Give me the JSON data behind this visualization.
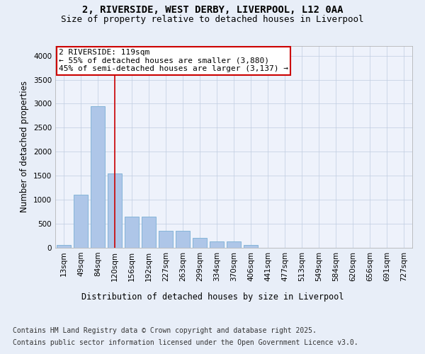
{
  "title1": "2, RIVERSIDE, WEST DERBY, LIVERPOOL, L12 0AA",
  "title2": "Size of property relative to detached houses in Liverpool",
  "xlabel": "Distribution of detached houses by size in Liverpool",
  "ylabel": "Number of detached properties",
  "categories": [
    "13sqm",
    "49sqm",
    "84sqm",
    "120sqm",
    "156sqm",
    "192sqm",
    "227sqm",
    "263sqm",
    "299sqm",
    "334sqm",
    "370sqm",
    "406sqm",
    "441sqm",
    "477sqm",
    "513sqm",
    "549sqm",
    "584sqm",
    "620sqm",
    "656sqm",
    "691sqm",
    "727sqm"
  ],
  "values": [
    55,
    1100,
    2950,
    1550,
    650,
    650,
    350,
    350,
    200,
    130,
    130,
    55,
    5,
    0,
    0,
    0,
    0,
    0,
    0,
    0,
    0
  ],
  "bar_color": "#aec6e8",
  "bar_edge_color": "#7aafd4",
  "vline_x_index": 3,
  "vline_color": "#cc0000",
  "ylim": [
    0,
    4200
  ],
  "yticks": [
    0,
    500,
    1000,
    1500,
    2000,
    2500,
    3000,
    3500,
    4000
  ],
  "annotation_text": "2 RIVERSIDE: 119sqm\n← 55% of detached houses are smaller (3,880)\n45% of semi-detached houses are larger (3,137) →",
  "annotation_box_color": "#ffffff",
  "annotation_box_edge_color": "#cc0000",
  "footnote1": "Contains HM Land Registry data © Crown copyright and database right 2025.",
  "footnote2": "Contains public sector information licensed under the Open Government Licence v3.0.",
  "background_color": "#e8eef8",
  "plot_background_color": "#eef2fb",
  "title_fontsize": 10,
  "subtitle_fontsize": 9,
  "axis_label_fontsize": 8.5,
  "tick_fontsize": 7.5,
  "annotation_fontsize": 8,
  "footnote_fontsize": 7
}
